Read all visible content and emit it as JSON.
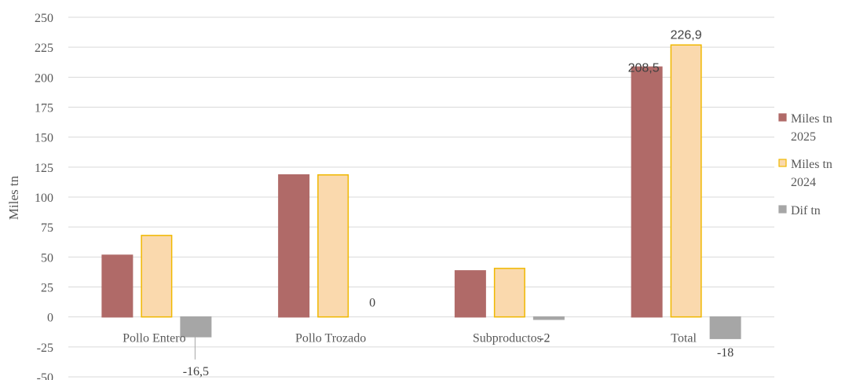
{
  "chart_data": {
    "type": "bar",
    "ylabel": "Miles tn",
    "xlabel": "",
    "ylim": [
      -50,
      250
    ],
    "yticks": [
      -50,
      -25,
      0,
      25,
      50,
      75,
      100,
      125,
      150,
      175,
      200,
      225,
      250
    ],
    "grid": true,
    "legend_position": "right",
    "categories": [
      "Pollo Entero",
      "Pollo Trozado",
      "Subproductos",
      "Total"
    ],
    "series": [
      {
        "name": "Miles tn 2025",
        "name_lines": [
          "Miles tn",
          "2025"
        ],
        "color": "#b06a68",
        "edge": "#b06a68",
        "values": [
          51.5,
          118.5,
          38.5,
          208.5
        ],
        "labels": [
          "",
          "",
          "",
          "208,5"
        ]
      },
      {
        "name": "Miles tn 2024",
        "name_lines": [
          "Miles tn",
          "2024"
        ],
        "color": "#fad9ad",
        "edge": "#f0b800",
        "values": [
          68,
          118.5,
          40.5,
          226.9
        ],
        "labels": [
          "",
          "",
          "",
          "226,9"
        ]
      },
      {
        "name": "Dif tn",
        "name_lines": [
          "Dif tn"
        ],
        "color": "#a6a6a6",
        "edge": "#a6a6a6",
        "values": [
          -16.5,
          0,
          -2,
          -18
        ],
        "labels": [
          "-16,5",
          "0",
          "-2",
          "-18"
        ]
      }
    ]
  }
}
